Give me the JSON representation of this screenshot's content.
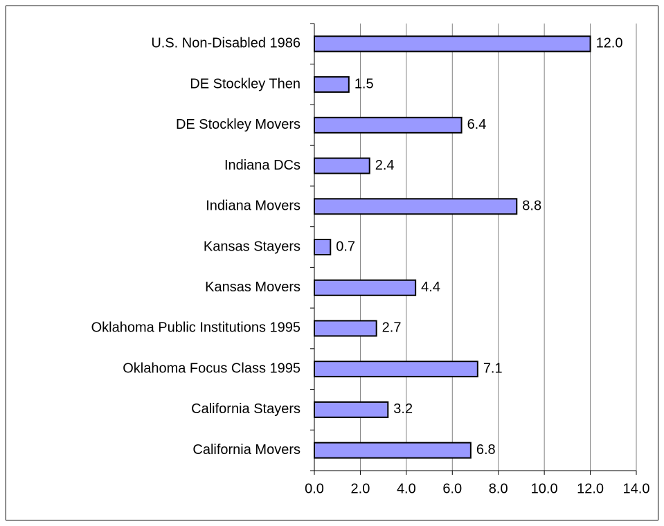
{
  "chart_data": {
    "type": "bar",
    "orientation": "horizontal",
    "categories": [
      "U.S. Non-Disabled 1986",
      "DE Stockley Then",
      "DE Stockley Movers",
      "Indiana DCs",
      "Indiana Movers",
      "Kansas Stayers",
      "Kansas Movers",
      "Oklahoma Public Institutions 1995",
      "Oklahoma Focus Class 1995",
      "California Stayers",
      "California Movers"
    ],
    "values": [
      12.0,
      1.5,
      6.4,
      2.4,
      8.8,
      0.7,
      4.4,
      2.7,
      7.1,
      3.2,
      6.8
    ],
    "value_labels": [
      "12.0",
      "1.5",
      "6.4",
      "2.4",
      "8.8",
      "0.7",
      "4.4",
      "2.7",
      "7.1",
      "3.2",
      "6.8"
    ],
    "color": "#9999ff",
    "xlim": [
      0,
      14
    ],
    "xticks": [
      {
        "value": 0,
        "label": "0.0"
      },
      {
        "value": 2,
        "label": "2.0"
      },
      {
        "value": 4,
        "label": "4.0"
      },
      {
        "value": 6,
        "label": "6.0"
      },
      {
        "value": 8,
        "label": "8.0"
      },
      {
        "value": 10,
        "label": "10.0"
      },
      {
        "value": 12,
        "label": "12.0"
      },
      {
        "value": 14,
        "label": "14.0"
      }
    ],
    "grid": true
  }
}
